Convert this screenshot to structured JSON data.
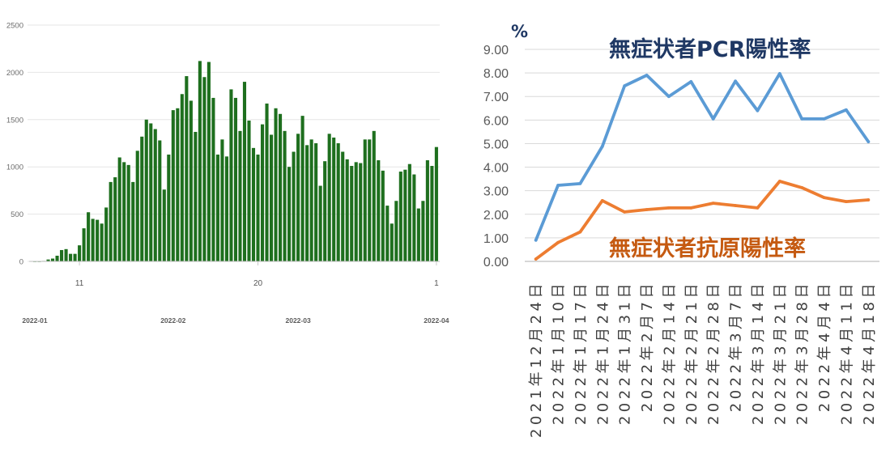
{
  "chart_data": [
    {
      "type": "bar",
      "x": [
        "2022-01-01",
        "2022-01-02",
        "2022-01-03",
        "2022-01-04",
        "2022-01-05",
        "2022-01-06",
        "2022-01-07",
        "2022-01-08",
        "2022-01-09",
        "2022-01-10",
        "2022-01-11",
        "2022-01-12",
        "2022-01-13",
        "2022-01-14",
        "2022-01-15",
        "2022-01-16",
        "2022-01-17",
        "2022-01-18",
        "2022-01-19",
        "2022-01-20",
        "2022-01-21",
        "2022-01-22",
        "2022-01-23",
        "2022-01-24",
        "2022-01-25",
        "2022-01-26",
        "2022-01-27",
        "2022-01-28",
        "2022-01-29",
        "2022-01-30",
        "2022-01-31",
        "2022-02-01",
        "2022-02-02",
        "2022-02-03",
        "2022-02-04",
        "2022-02-05",
        "2022-02-06",
        "2022-02-07",
        "2022-02-08",
        "2022-02-09",
        "2022-02-10",
        "2022-02-11",
        "2022-02-12",
        "2022-02-13",
        "2022-02-14",
        "2022-02-15",
        "2022-02-16",
        "2022-02-17",
        "2022-02-18",
        "2022-02-19",
        "2022-02-20",
        "2022-02-21",
        "2022-02-22",
        "2022-02-23",
        "2022-02-24",
        "2022-02-25",
        "2022-02-26",
        "2022-02-27",
        "2022-02-28",
        "2022-03-01",
        "2022-03-02",
        "2022-03-03",
        "2022-03-04",
        "2022-03-05",
        "2022-03-06",
        "2022-03-07",
        "2022-03-08",
        "2022-03-09",
        "2022-03-10",
        "2022-03-11",
        "2022-03-12",
        "2022-03-13",
        "2022-03-14",
        "2022-03-15",
        "2022-03-16",
        "2022-03-17",
        "2022-03-18",
        "2022-03-19",
        "2022-03-20",
        "2022-03-21",
        "2022-03-22",
        "2022-03-23",
        "2022-03-24",
        "2022-03-25",
        "2022-03-26",
        "2022-03-27",
        "2022-03-28",
        "2022-03-29",
        "2022-03-30",
        "2022-03-31",
        "2022-04-01"
      ],
      "values": [
        0,
        0,
        5,
        20,
        30,
        60,
        120,
        130,
        80,
        80,
        170,
        350,
        520,
        450,
        440,
        400,
        570,
        840,
        890,
        1100,
        1050,
        1020,
        840,
        1170,
        1320,
        1500,
        1460,
        1400,
        1280,
        760,
        1130,
        1600,
        1620,
        1770,
        1960,
        1700,
        1370,
        2120,
        1950,
        2110,
        1730,
        1130,
        1290,
        1110,
        1820,
        1730,
        1380,
        1900,
        1490,
        1200,
        1130,
        1450,
        1670,
        1340,
        1620,
        1560,
        1380,
        1000,
        1160,
        1350,
        1540,
        1230,
        1290,
        1250,
        800,
        1060,
        1350,
        1310,
        1250,
        1160,
        1080,
        1010,
        1050,
        1040,
        1290,
        1290,
        1380,
        1070,
        960,
        590,
        400,
        640,
        950,
        970,
        1030,
        920,
        560,
        640,
        1070,
        1010,
        1210
      ],
      "ylim": [
        0,
        2500
      ],
      "yticks": [
        "0",
        "500",
        "1000",
        "1500",
        "2000",
        "2500"
      ],
      "xticks": [
        {
          "label": "11",
          "x": "2022-01-11"
        },
        {
          "label": "20",
          "x": "2022-02-20"
        },
        {
          "label": "1",
          "x": "2022-04-01"
        }
      ],
      "month_labels": [
        {
          "label": "2022-01",
          "x": "2022-01-01"
        },
        {
          "label": "2022-02",
          "x": "2022-02-01"
        },
        {
          "label": "2022-03",
          "x": "2022-03-01"
        },
        {
          "label": "2022-04",
          "x": "2022-04-01"
        }
      ],
      "color": "#1e6f1e",
      "grid": true
    },
    {
      "type": "line",
      "ylabel": "%",
      "categories": [
        "2021年12月24日",
        "2022年1月10日",
        "2022年1月17日",
        "2022年1月24日",
        "2022年1月31日",
        "2022年2月7日",
        "2022年2月14日",
        "2022年2月21日",
        "2022年2月28日",
        "2022年3月7日",
        "2022年3月14日",
        "2022年3月21日",
        "2022年3月28日",
        "2022年4月4日",
        "2022年4月11日",
        "2022年4月18日"
      ],
      "series": [
        {
          "name": "無症状者PCR陽性率",
          "values": [
            0.9,
            3.23,
            3.3,
            4.88,
            7.45,
            7.9,
            7.0,
            7.63,
            6.05,
            7.65,
            6.4,
            7.97,
            6.05,
            6.05,
            6.43,
            5.08
          ],
          "color": "#5b9bd5",
          "label_color": "#1f3864"
        },
        {
          "name": "無症状者抗原陽性率",
          "values": [
            0.1,
            0.8,
            1.25,
            2.58,
            2.1,
            2.2,
            2.27,
            2.27,
            2.47,
            2.37,
            2.27,
            3.4,
            3.13,
            2.71,
            2.54,
            2.61
          ],
          "color": "#ed7d31",
          "label_color": "#c55a11"
        }
      ],
      "ylim": [
        0,
        9
      ],
      "yticks": [
        "0.00",
        "1.00",
        "2.00",
        "3.00",
        "4.00",
        "5.00",
        "6.00",
        "7.00",
        "8.00",
        "9.00"
      ],
      "grid": true
    }
  ]
}
